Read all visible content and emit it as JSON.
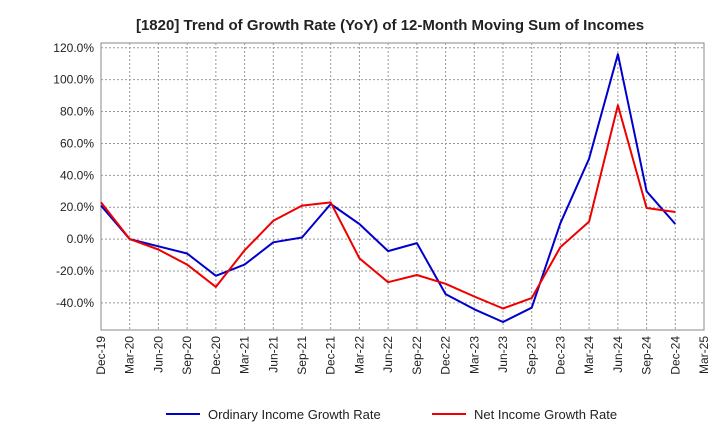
{
  "chart_data": {
    "type": "line",
    "title": "[1820]  Trend of Growth Rate (YoY) of 12-Month Moving Sum of Incomes",
    "xlabel": "",
    "ylabel": "",
    "categories": [
      "Dec-19",
      "Mar-20",
      "Jun-20",
      "Sep-20",
      "Dec-20",
      "Mar-21",
      "Jun-21",
      "Sep-21",
      "Dec-21",
      "Mar-22",
      "Jun-22",
      "Sep-22",
      "Dec-22",
      "Mar-23",
      "Jun-23",
      "Sep-23",
      "Dec-23",
      "Mar-24",
      "Jun-24",
      "Sep-24",
      "Dec-24",
      "Mar-25"
    ],
    "x_tick_labels": [
      "Dec-19",
      "Mar-20",
      "Jun-20",
      "Sep-20",
      "Dec-20",
      "Mar-21",
      "Jun-21",
      "Sep-21",
      "Dec-21",
      "Mar-22",
      "Jun-22",
      "Sep-22",
      "Dec-22",
      "Mar-23",
      "Jun-23",
      "Sep-23",
      "Dec-23",
      "Mar-24",
      "Jun-24",
      "Sep-24",
      "Dec-24",
      "Mar-25"
    ],
    "y_tick_labels": [
      "120.0%",
      "100.0%",
      "80.0%",
      "60.0%",
      "40.0%",
      "20.0%",
      "0.0%",
      "-20.0%",
      "-40.0%"
    ],
    "y_ticks": [
      120,
      100,
      80,
      60,
      40,
      20,
      0,
      -20,
      -40
    ],
    "ylim": [
      -57,
      123
    ],
    "grid": true,
    "legend_position": "bottom",
    "series": [
      {
        "name": "Ordinary Income Growth Rate",
        "color": "#0000cc",
        "values": [
          21,
          0,
          -4.5,
          -9,
          -23,
          -16,
          -2,
          1,
          22,
          9.5,
          -7.5,
          -2.5,
          -34.5,
          -44,
          -52,
          -43,
          10,
          50.5,
          116,
          30,
          9.5,
          null
        ]
      },
      {
        "name": "Net Income Growth Rate",
        "color": "#ee0000",
        "values": [
          23,
          0,
          -6.5,
          -16,
          -30,
          -7,
          11.5,
          21,
          23,
          -12,
          -27,
          -22.5,
          -28,
          -36,
          -43.5,
          -37,
          -5,
          11,
          84,
          19.5,
          17,
          null
        ]
      }
    ]
  }
}
